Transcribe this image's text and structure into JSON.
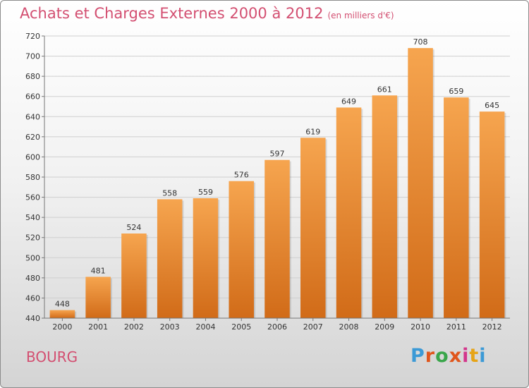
{
  "header": {
    "title": "Achats et Charges Externes 2000 à 2012",
    "unit": "(en milliers d'€)"
  },
  "footer": {
    "commune": "BOURG",
    "logo": "Proxiti"
  },
  "colors": {
    "accent": "#d34f71",
    "bar_top": "#f6a54f",
    "bar_bottom": "#d16b18"
  },
  "chart_data": {
    "type": "bar",
    "title": "Achats et Charges Externes 2000 à 2012",
    "subtitle": "(en milliers d'€)",
    "xlabel": "",
    "ylabel": "",
    "categories": [
      "2000",
      "2001",
      "2002",
      "2003",
      "2004",
      "2005",
      "2006",
      "2007",
      "2008",
      "2009",
      "2010",
      "2011",
      "2012"
    ],
    "values": [
      448,
      481,
      524,
      558,
      559,
      576,
      597,
      619,
      649,
      661,
      708,
      659,
      645
    ],
    "ylim": [
      440,
      720
    ],
    "yticks": [
      440,
      460,
      480,
      500,
      520,
      540,
      560,
      580,
      600,
      620,
      640,
      660,
      680,
      700,
      720
    ],
    "grid": true,
    "data_labels": true,
    "legend": "none"
  }
}
